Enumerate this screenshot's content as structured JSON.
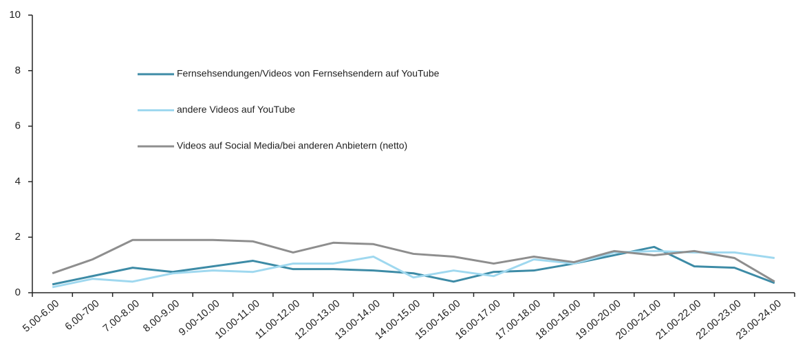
{
  "chart_data": {
    "type": "line",
    "categories": [
      "5.00-6.00",
      "6.00-700",
      "7.00-8.00",
      "8.00-9.00",
      "9.00-10.00",
      "10.00-11.00",
      "11.00-12.00",
      "12.00-13.00",
      "13.00-14.00",
      "14.00-15.00",
      "15.00-16.00",
      "16.00-17.00",
      "17.00-18.00",
      "18.00-19.00",
      "19.00-20.00",
      "20.00-21.00",
      "21.00-22.00",
      "22.00-23.00",
      "23.00-24.00"
    ],
    "series": [
      {
        "name": "Fernsehsendungen/Videos von Fernsehsendern auf YouTube",
        "color": "#3d8ba6",
        "values": [
          0.3,
          0.6,
          0.9,
          0.75,
          0.95,
          1.15,
          0.85,
          0.85,
          0.8,
          0.7,
          0.4,
          0.75,
          0.8,
          1.05,
          1.35,
          1.65,
          0.95,
          0.9,
          0.35
        ]
      },
      {
        "name": "andere Videos auf YouTube",
        "color": "#9fd8ef",
        "values": [
          0.2,
          0.5,
          0.4,
          0.7,
          0.8,
          0.75,
          1.05,
          1.05,
          1.3,
          0.55,
          0.8,
          0.6,
          1.2,
          1.05,
          1.45,
          1.5,
          1.45,
          1.45,
          1.25
        ]
      },
      {
        "name": "Videos auf Social Media/bei anderen Anbietern (netto)",
        "color": "#8e8e8e",
        "values": [
          0.7,
          1.2,
          1.9,
          1.9,
          1.9,
          1.85,
          1.45,
          1.8,
          1.75,
          1.4,
          1.3,
          1.05,
          1.3,
          1.1,
          1.5,
          1.35,
          1.5,
          1.25,
          0.4
        ]
      }
    ],
    "ylim": [
      0,
      10
    ],
    "yticks": [
      0,
      2,
      4,
      6,
      8,
      10
    ],
    "grid": false
  }
}
